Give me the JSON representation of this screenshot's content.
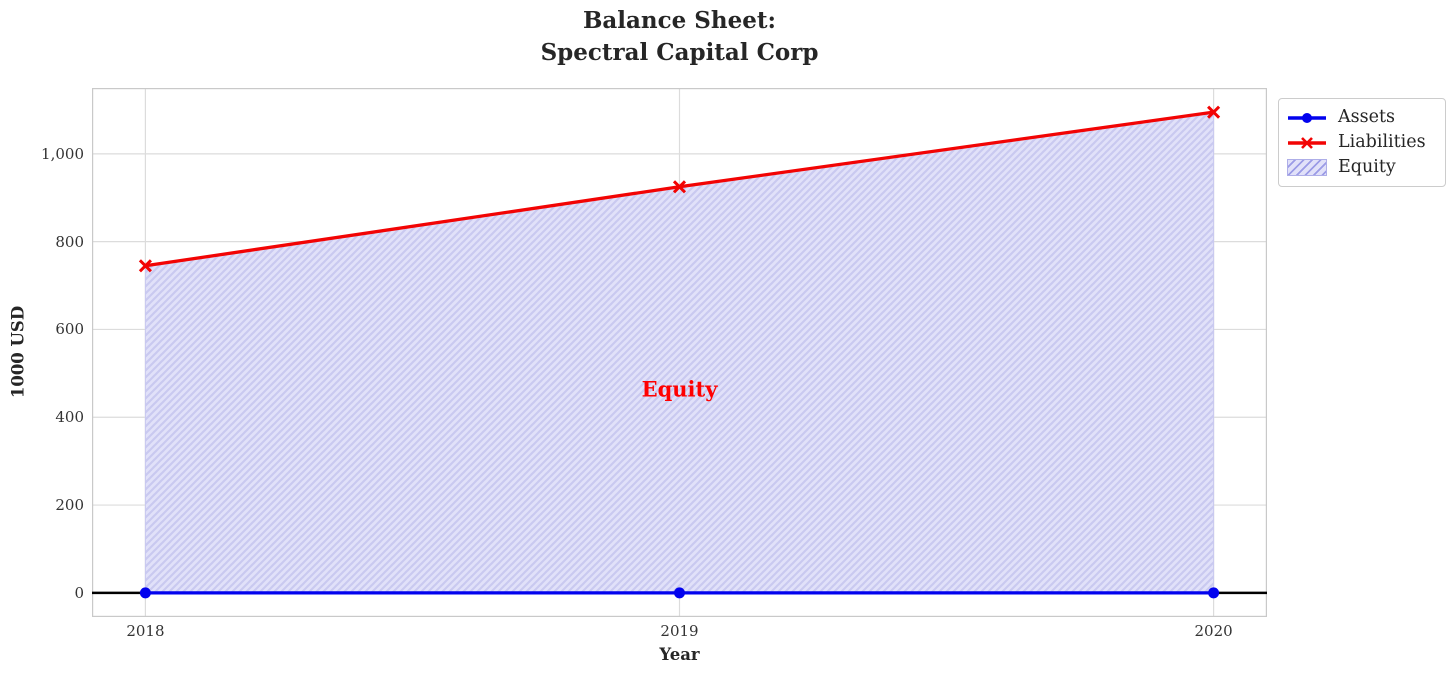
{
  "figure": {
    "title": "Balance Sheet:\nSpectral Capital Corp",
    "xlabel": "Year",
    "ylabel": "1000 USD"
  },
  "chart_data": {
    "type": "line",
    "title": "Balance Sheet: Spectral Capital Corp",
    "xlabel": "Year",
    "ylabel": "1000 USD",
    "x": [
      2018,
      2019,
      2020
    ],
    "series": [
      {
        "name": "Assets",
        "values": [
          0,
          0,
          0
        ],
        "color": "#0202ee",
        "marker": "circle"
      },
      {
        "name": "Liabilities",
        "values": [
          745,
          925,
          1095
        ],
        "color": "#f20404",
        "marker": "x"
      }
    ],
    "area": {
      "name": "Equity",
      "between": [
        "Assets",
        "Liabilities"
      ],
      "fill": "#e1e1f9",
      "hatch_color": "#c9c9f0",
      "hatch": "/"
    },
    "legend_labels": [
      "Assets",
      "Liabilities",
      "Equity"
    ],
    "legend_position": "upper right, outside axes",
    "annotation": {
      "text": "Equity",
      "x": 2019,
      "y": 465,
      "color": "#ff0000"
    },
    "xticks": [
      2018,
      2019,
      2020
    ],
    "xtick_labels": [
      "2018",
      "2019",
      "2020"
    ],
    "yticks": [
      0,
      200,
      400,
      600,
      800,
      1000
    ],
    "ytick_labels": [
      "0",
      "200",
      "400",
      "600",
      "800",
      "1,000"
    ],
    "xlim": [
      2017.9,
      2020.1
    ],
    "ylim": [
      -55,
      1150
    ],
    "grid": true,
    "zero_line_color": "#000000",
    "colors": {
      "grid": "#dcdcdc",
      "spine": "#c9c9c9",
      "text": "#262626",
      "tick": "#333333",
      "background": "#ffffff",
      "legend_hatch": "#9b9be6",
      "legend_swatch_border": "#aeaee8"
    }
  }
}
